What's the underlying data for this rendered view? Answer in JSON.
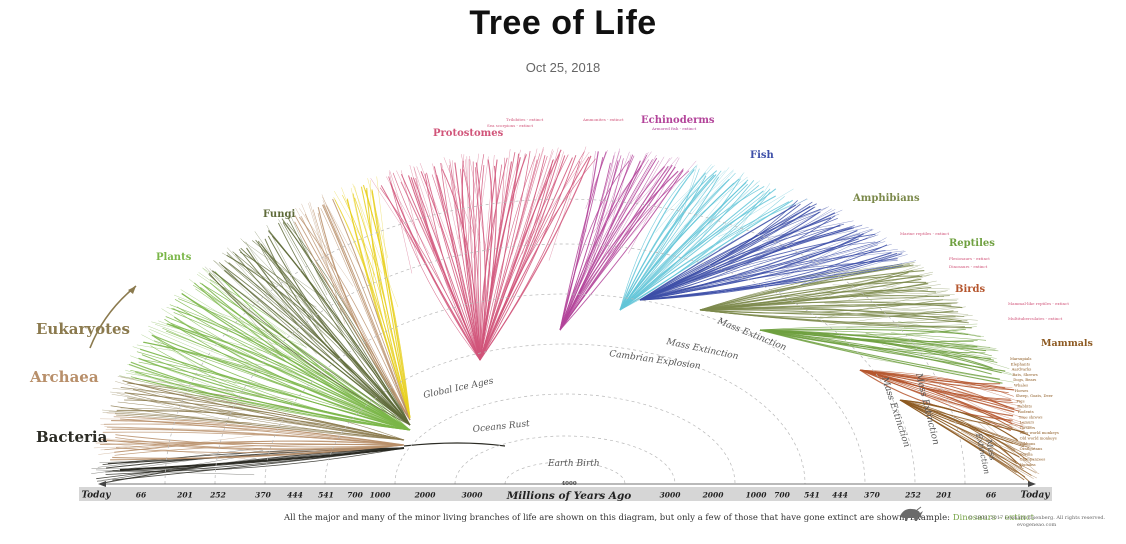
{
  "page": {
    "title": "Tree of Life",
    "date": "Oct 25, 2018"
  },
  "axis": {
    "label": "Millions of Years Ago",
    "center_value": "4000",
    "left_ticks": [
      "Today",
      "66",
      "201",
      "252",
      "370",
      "444",
      "541",
      "700",
      "1000",
      "2000",
      "3000"
    ],
    "right_ticks": [
      "3000",
      "2000",
      "1000",
      "700",
      "541",
      "444",
      "370",
      "252",
      "201",
      "66",
      "Today"
    ]
  },
  "groups": {
    "bacteria": "Bacteria",
    "archaea": "Archaea",
    "eukaryotes": "Eukaryotes",
    "plants": "Plants",
    "fungi": "Fungi",
    "protostomes": "Protostomes",
    "echinoderms": "Echinoderms",
    "fish": "Fish",
    "amphibians": "Amphibians",
    "reptiles": "Reptiles",
    "birds": "Birds",
    "mammals": "Mammals"
  },
  "events": {
    "oceans_rust": "Oceans Rust",
    "earth_birth": "Earth Birth",
    "global_ice_ages": "Global Ice Ages",
    "cambrian_explosion": "Cambrian Explosion",
    "mass_extinction": "Mass Extinction",
    "mass_extinction_split": [
      "Mass",
      "Extinction"
    ]
  },
  "extinct_labels": {
    "trilobites": "Trilobites - extinct",
    "sea_scorpions": "Sea scorpions - extinct",
    "ammonites": "Ammonites - extinct",
    "armored_fish": "Armored fish - extinct",
    "marine_reptiles": "Marine reptiles - extinct",
    "plesiosaurs": "Plesiosaurs - extinct",
    "dinosaurs": "Dinosaurs - extinct",
    "mammal_like_reptiles": "Mammal-like reptiles - extinct",
    "multituberculates": "Multituberculates - extinct"
  },
  "mammal_labels": [
    "Marsupials",
    "Elephants",
    "Aardvarks",
    "Bats, Shrews",
    "Dogs, Bears",
    "Whales",
    "Horses",
    "Sheep, Goats, Deer",
    "Pigs",
    "Rabbits",
    "Rodents",
    "Tree shrews",
    "Lemurs",
    "Tarsiers",
    "New world monkeys",
    "Old world monkeys",
    "Gibbons",
    "Orangutans",
    "Gorilla",
    "Chimpanzees",
    "Humans"
  ],
  "caption": {
    "text": "All the major and many of the minor living branches of life are shown on this diagram, but only a few of those that have gone extinct are shown. Example:",
    "example": "Dinosaurs - extinct"
  },
  "copyright": {
    "line1": "© 2008, 2017 Leonard Eisenberg. All rights reserved.",
    "line2": "evogeneao.com"
  },
  "colors": {
    "bacteria": "#2b2b24",
    "archaea": "#b88f6a",
    "eukaryotes": "#8b7a4e",
    "plants": "#7ab648",
    "fungi": "#5f6b3a",
    "yellow": "#e8d020",
    "protostomes": "#d1557a",
    "echinoderms": "#b3449a",
    "fish_light": "#63c6d8",
    "fish": "#3d4fa8",
    "amphibians": "#7c8a4c",
    "reptiles": "#6fa040",
    "birds": "#b5562e",
    "mammals": "#8d5a22"
  }
}
